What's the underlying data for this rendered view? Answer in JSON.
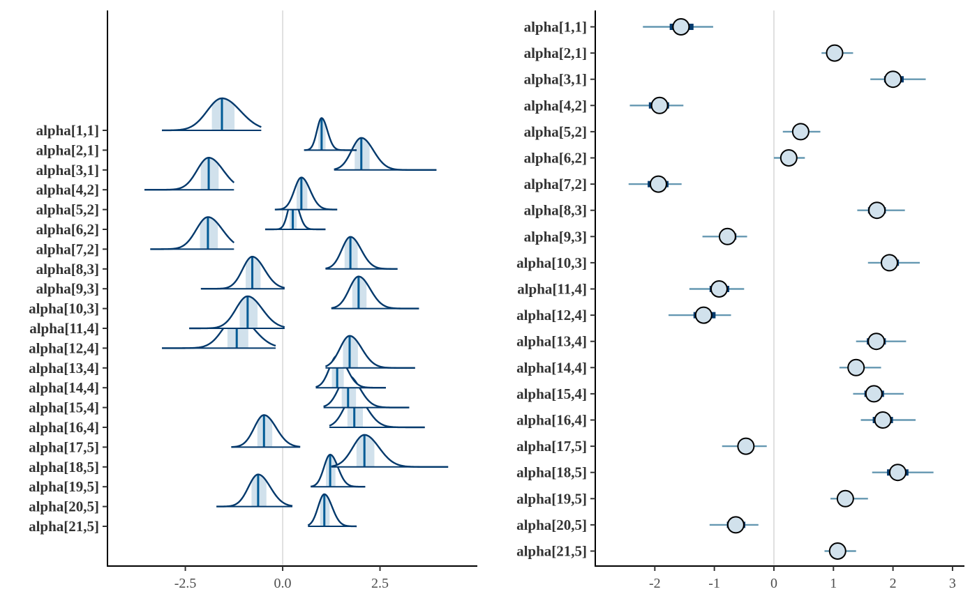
{
  "colors": {
    "dark_blue": "#03396c",
    "mid_blue": "#005b96",
    "light_blue": "#b3cde0",
    "fill_blue": "#d1e1ec",
    "interval_line": "#6497b1",
    "zero_line": "#e0e0e0"
  },
  "chart_data": [
    {
      "type": "ridgeline",
      "title": "",
      "xlabel": "",
      "ylabel": "",
      "xlim": [
        -4.5,
        5.0
      ],
      "xticks": [
        -2.5,
        0.0,
        2.5
      ],
      "xtick_labels": [
        "-2.5",
        "0.0",
        "2.5"
      ],
      "vline": 0,
      "grid": false,
      "series": [
        {
          "name": "alpha[1,1]",
          "median": -1.56,
          "sd": 0.38,
          "lo": -3.1,
          "hi": -0.55
        },
        {
          "name": "alpha[2,1]",
          "median": 1.0,
          "sd": 0.12,
          "lo": 0.55,
          "hi": 1.9
        },
        {
          "name": "alpha[3,1]",
          "median": 2.02,
          "sd": 0.25,
          "lo": 1.32,
          "hi": 3.95
        },
        {
          "name": "alpha[4,2]",
          "median": -1.9,
          "sd": 0.3,
          "lo": -3.55,
          "hi": -1.25
        },
        {
          "name": "alpha[5,2]",
          "median": 0.48,
          "sd": 0.18,
          "lo": -0.2,
          "hi": 1.4
        },
        {
          "name": "alpha[6,2]",
          "median": 0.26,
          "sd": 0.12,
          "lo": -0.45,
          "hi": 1.1
        },
        {
          "name": "alpha[7,2]",
          "median": -1.92,
          "sd": 0.3,
          "lo": -3.4,
          "hi": -1.25
        },
        {
          "name": "alpha[8,3]",
          "median": 1.74,
          "sd": 0.22,
          "lo": 1.1,
          "hi": 2.95
        },
        {
          "name": "alpha[9,3]",
          "median": -0.78,
          "sd": 0.25,
          "lo": -2.1,
          "hi": 0.05
        },
        {
          "name": "alpha[10,3]",
          "median": 1.95,
          "sd": 0.24,
          "lo": 1.25,
          "hi": 3.5
        },
        {
          "name": "alpha[11,4]",
          "median": -0.9,
          "sd": 0.3,
          "lo": -2.4,
          "hi": 0.05
        },
        {
          "name": "alpha[12,4]",
          "median": -1.18,
          "sd": 0.35,
          "lo": -3.1,
          "hi": -0.18
        },
        {
          "name": "alpha[13,4]",
          "median": 1.72,
          "sd": 0.25,
          "lo": 1.1,
          "hi": 3.4
        },
        {
          "name": "alpha[14,4]",
          "median": 1.4,
          "sd": 0.2,
          "lo": 0.85,
          "hi": 2.65
        },
        {
          "name": "alpha[15,4]",
          "median": 1.68,
          "sd": 0.24,
          "lo": 1.05,
          "hi": 3.25
        },
        {
          "name": "alpha[16,4]",
          "median": 1.84,
          "sd": 0.26,
          "lo": 1.2,
          "hi": 3.65
        },
        {
          "name": "alpha[17,5]",
          "median": -0.48,
          "sd": 0.25,
          "lo": -1.32,
          "hi": 0.45
        },
        {
          "name": "alpha[18,5]",
          "median": 2.1,
          "sd": 0.3,
          "lo": 1.25,
          "hi": 4.25
        },
        {
          "name": "alpha[19,5]",
          "median": 1.22,
          "sd": 0.16,
          "lo": 0.72,
          "hi": 2.12
        },
        {
          "name": "alpha[20,5]",
          "median": -0.63,
          "sd": 0.25,
          "lo": -1.7,
          "hi": 0.25
        },
        {
          "name": "alpha[21,5]",
          "median": 1.07,
          "sd": 0.16,
          "lo": 0.65,
          "hi": 1.9
        }
      ]
    },
    {
      "type": "interval",
      "title": "",
      "xlabel": "",
      "ylabel": "",
      "xlim": [
        -3.0,
        3.2
      ],
      "xticks": [
        -2,
        -1,
        0,
        1,
        2,
        3
      ],
      "xtick_labels": [
        "-2",
        "-1",
        "0",
        "1",
        "2",
        "3"
      ],
      "vline": 0,
      "grid": false,
      "series": [
        {
          "name": "alpha[1,1]",
          "median": -1.56,
          "inner": [
            -1.75,
            -1.35
          ],
          "outer": [
            -2.2,
            -1.02
          ]
        },
        {
          "name": "alpha[2,1]",
          "median": 1.02,
          "inner": [
            0.92,
            1.1
          ],
          "outer": [
            0.8,
            1.33
          ]
        },
        {
          "name": "alpha[3,1]",
          "median": 2.0,
          "inner": [
            1.85,
            2.18
          ],
          "outer": [
            1.62,
            2.55
          ]
        },
        {
          "name": "alpha[4,2]",
          "median": -1.92,
          "inner": [
            -2.1,
            -1.76
          ],
          "outer": [
            -2.42,
            -1.52
          ]
        },
        {
          "name": "alpha[5,2]",
          "median": 0.45,
          "inner": [
            0.33,
            0.57
          ],
          "outer": [
            0.15,
            0.78
          ]
        },
        {
          "name": "alpha[6,2]",
          "median": 0.25,
          "inner": [
            0.17,
            0.33
          ],
          "outer": [
            0.0,
            0.52
          ]
        },
        {
          "name": "alpha[7,2]",
          "median": -1.94,
          "inner": [
            -2.12,
            -1.77
          ],
          "outer": [
            -2.44,
            -1.55
          ]
        },
        {
          "name": "alpha[8,3]",
          "median": 1.73,
          "inner": [
            1.58,
            1.88
          ],
          "outer": [
            1.4,
            2.2
          ]
        },
        {
          "name": "alpha[9,3]",
          "median": -0.78,
          "inner": [
            -0.92,
            -0.63
          ],
          "outer": [
            -1.2,
            -0.45
          ]
        },
        {
          "name": "alpha[10,3]",
          "median": 1.94,
          "inner": [
            1.8,
            2.1
          ],
          "outer": [
            1.58,
            2.45
          ]
        },
        {
          "name": "alpha[11,4]",
          "median": -0.92,
          "inner": [
            -1.08,
            -0.75
          ],
          "outer": [
            -1.42,
            -0.5
          ]
        },
        {
          "name": "alpha[12,4]",
          "median": -1.18,
          "inner": [
            -1.35,
            -0.98
          ],
          "outer": [
            -1.77,
            -0.72
          ]
        },
        {
          "name": "alpha[13,4]",
          "median": 1.72,
          "inner": [
            1.56,
            1.88
          ],
          "outer": [
            1.38,
            2.22
          ]
        },
        {
          "name": "alpha[14,4]",
          "median": 1.38,
          "inner": [
            1.26,
            1.5
          ],
          "outer": [
            1.1,
            1.8
          ]
        },
        {
          "name": "alpha[15,4]",
          "median": 1.68,
          "inner": [
            1.52,
            1.85
          ],
          "outer": [
            1.33,
            2.18
          ]
        },
        {
          "name": "alpha[16,4]",
          "median": 1.83,
          "inner": [
            1.66,
            2.0
          ],
          "outer": [
            1.46,
            2.38
          ]
        },
        {
          "name": "alpha[17,5]",
          "median": -0.47,
          "inner": [
            -0.6,
            -0.34
          ],
          "outer": [
            -0.87,
            -0.12
          ]
        },
        {
          "name": "alpha[18,5]",
          "median": 2.08,
          "inner": [
            1.9,
            2.26
          ],
          "outer": [
            1.65,
            2.68
          ]
        },
        {
          "name": "alpha[19,5]",
          "median": 1.2,
          "inner": [
            1.1,
            1.3
          ],
          "outer": [
            0.95,
            1.58
          ]
        },
        {
          "name": "alpha[20,5]",
          "median": -0.64,
          "inner": [
            -0.79,
            -0.48
          ],
          "outer": [
            -1.08,
            -0.26
          ]
        },
        {
          "name": "alpha[21,5]",
          "median": 1.07,
          "inner": [
            0.97,
            1.17
          ],
          "outer": [
            0.85,
            1.38
          ]
        }
      ]
    }
  ]
}
